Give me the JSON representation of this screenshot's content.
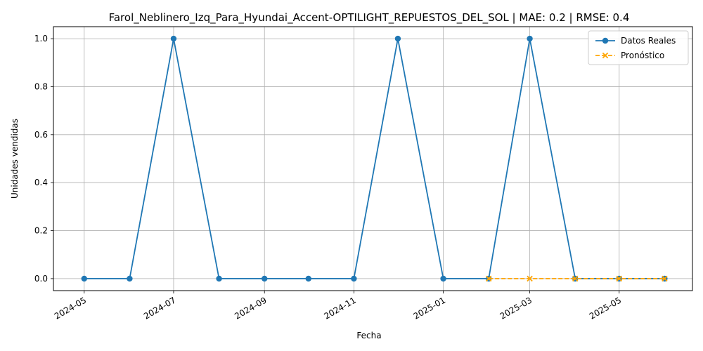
{
  "chart_data": {
    "type": "line",
    "title": "Farol_Neblinero_Izq_Para_Hyundai_Accent-OPTILIGHT_REPUESTOS_DEL_SOL | MAE: 0.2 | RMSE: 0.4",
    "xlabel": "Fecha",
    "ylabel": "Unidades vendidas",
    "xlim": [
      "2024-04-10",
      "2025-06-20"
    ],
    "ylim": [
      -0.05,
      1.05
    ],
    "x_ticks": [
      "2024-05",
      "2024-07",
      "2024-09",
      "2024-11",
      "2025-01",
      "2025-03",
      "2025-05"
    ],
    "y_ticks": [
      "0.0",
      "0.2",
      "0.4",
      "0.6",
      "0.8",
      "1.0"
    ],
    "grid": true,
    "legend_position": "top-right",
    "series": [
      {
        "name": "Datos Reales",
        "color": "#1f77b4",
        "marker": "circle",
        "linestyle": "solid",
        "x": [
          "2024-05-01",
          "2024-06-01",
          "2024-07-01",
          "2024-08-01",
          "2024-09-01",
          "2024-10-01",
          "2024-11-01",
          "2024-12-01",
          "2025-01-01",
          "2025-02-01",
          "2025-03-01",
          "2025-04-01",
          "2025-05-01",
          "2025-06-01"
        ],
        "values": [
          0,
          0,
          1,
          0,
          0,
          0,
          0,
          1,
          0,
          0,
          1,
          0,
          0,
          0
        ]
      },
      {
        "name": "Pronóstico",
        "color": "#ffa500",
        "marker": "x",
        "linestyle": "dashed",
        "x": [
          "2025-02-01",
          "2025-03-01",
          "2025-04-01",
          "2025-05-01",
          "2025-06-01"
        ],
        "values": [
          0,
          0,
          0,
          0,
          0
        ]
      }
    ]
  }
}
